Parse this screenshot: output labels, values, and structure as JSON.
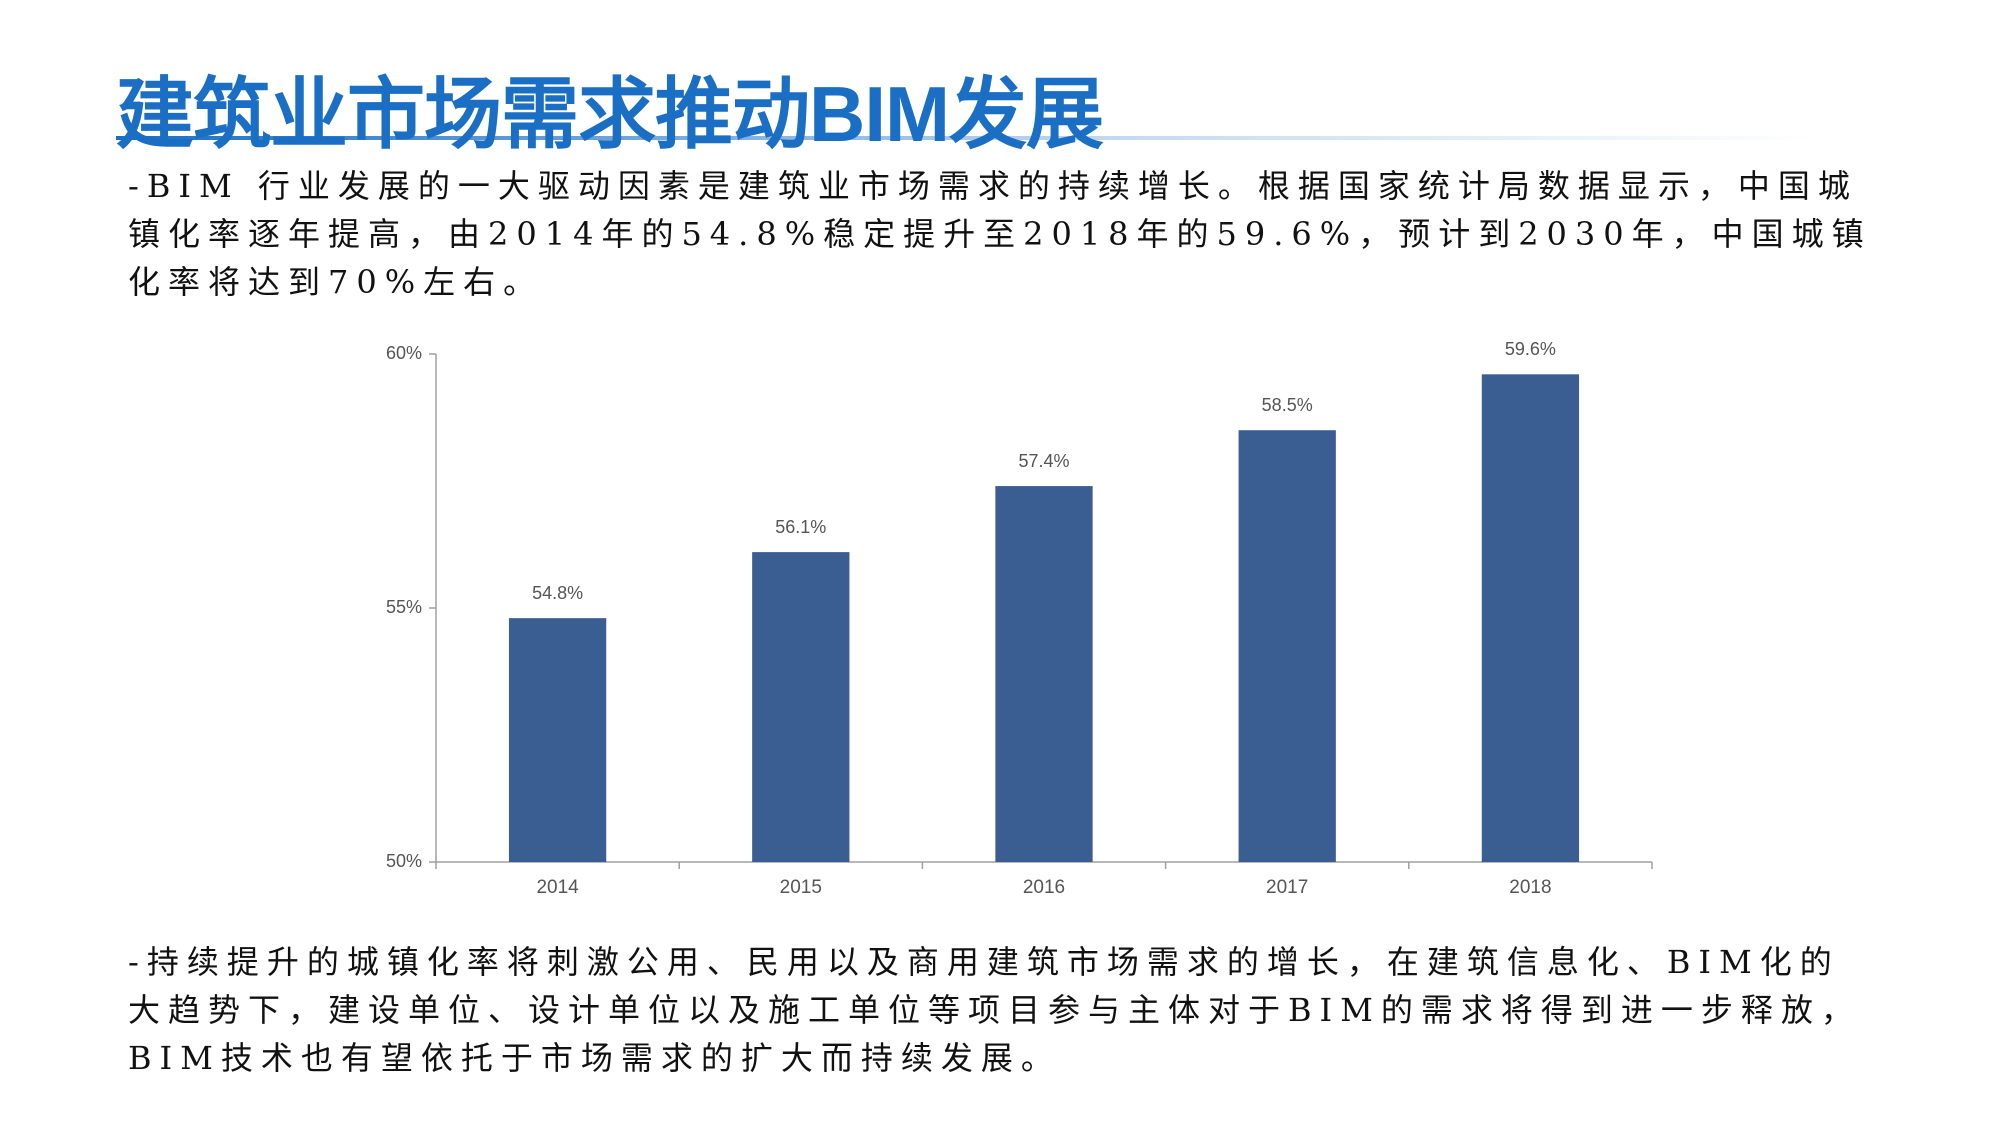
{
  "header": {
    "title": "建筑业市场需求推动BIM发展"
  },
  "paragraphs": [
    "-BIM 行业发展的一大驱动因素是建筑业市场需求的持续增长。根据国家统计局数据显示，中国城镇化率逐年提高，由2014年的54.8%稳定提升至2018年的59.6%，预计到2030年，中国城镇化率将达到70%左右。",
    "-持续提升的城镇化率将刺激公用、民用以及商用建筑市场需求的增长，在建筑信息化、BIM化的大趋势下，建设单位、设计单位以及施工单位等项目参与主体对于BIM的需求将得到进一步释放，BIM技术也有望依托于市场需求的扩大而持续发展。"
  ],
  "chart_data": {
    "type": "bar",
    "categories": [
      "2014",
      "2015",
      "2016",
      "2017",
      "2018"
    ],
    "values": [
      54.8,
      56.1,
      57.4,
      58.5,
      59.6
    ],
    "value_labels": [
      "54.8%",
      "56.1%",
      "57.4%",
      "58.5%",
      "59.6%"
    ],
    "color": "#3a5d92",
    "ylim": [
      50,
      60
    ],
    "yticks": [
      {
        "value": 50,
        "label": "50%"
      },
      {
        "value": 55,
        "label": "55%"
      },
      {
        "value": 60,
        "label": "60%"
      }
    ]
  }
}
